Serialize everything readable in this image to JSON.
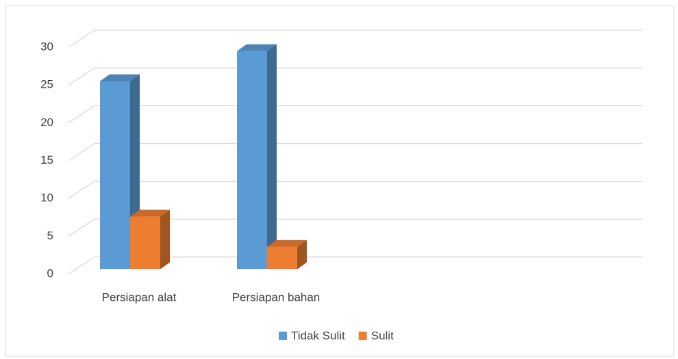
{
  "chart_data": {
    "type": "bar3d",
    "categories": [
      "Persiapan alat",
      "Persiapan bahan",
      null,
      null
    ],
    "series": [
      {
        "name": "Tidak Sulit",
        "color": "#5b9bd5",
        "values": [
          25,
          29,
          null,
          null
        ]
      },
      {
        "name": "Sulit",
        "color": "#ed7d31",
        "values": [
          7,
          3,
          null,
          null
        ]
      }
    ],
    "ylim": [
      0,
      30
    ],
    "yticks": [
      0,
      5,
      10,
      15,
      20,
      25,
      30
    ],
    "grid": true,
    "legend": "bottom"
  }
}
